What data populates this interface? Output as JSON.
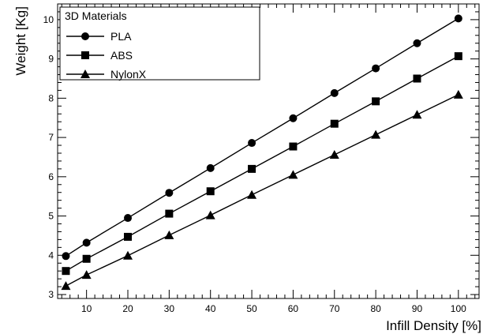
{
  "chart_data": {
    "type": "line",
    "xlabel": "Infill Density [%]",
    "ylabel": "Weight [Kg]",
    "xlim": [
      3,
      105
    ],
    "ylim": [
      2.9,
      10.4
    ],
    "x_ticks": [
      10,
      20,
      30,
      40,
      50,
      60,
      70,
      80,
      90,
      100
    ],
    "y_ticks": [
      3,
      4,
      5,
      6,
      7,
      8,
      9,
      10
    ],
    "legend": {
      "title": "3D Materials",
      "placement": "top-left"
    },
    "x": [
      5,
      10,
      20,
      30,
      40,
      50,
      60,
      70,
      80,
      90,
      100
    ],
    "series": [
      {
        "name": "PLA",
        "marker": "circle",
        "values": [
          3.98,
          4.32,
          4.95,
          5.59,
          6.22,
          6.86,
          7.49,
          8.13,
          8.76,
          9.4,
          10.03
        ]
      },
      {
        "name": "ABS",
        "marker": "square",
        "values": [
          3.6,
          3.91,
          4.47,
          5.06,
          5.63,
          6.2,
          6.77,
          7.35,
          7.92,
          8.5,
          9.07
        ]
      },
      {
        "name": "NylonX",
        "marker": "triangle",
        "values": [
          3.22,
          3.5,
          3.99,
          4.51,
          5.02,
          5.54,
          6.05,
          6.56,
          7.07,
          7.58,
          8.09
        ]
      }
    ]
  }
}
